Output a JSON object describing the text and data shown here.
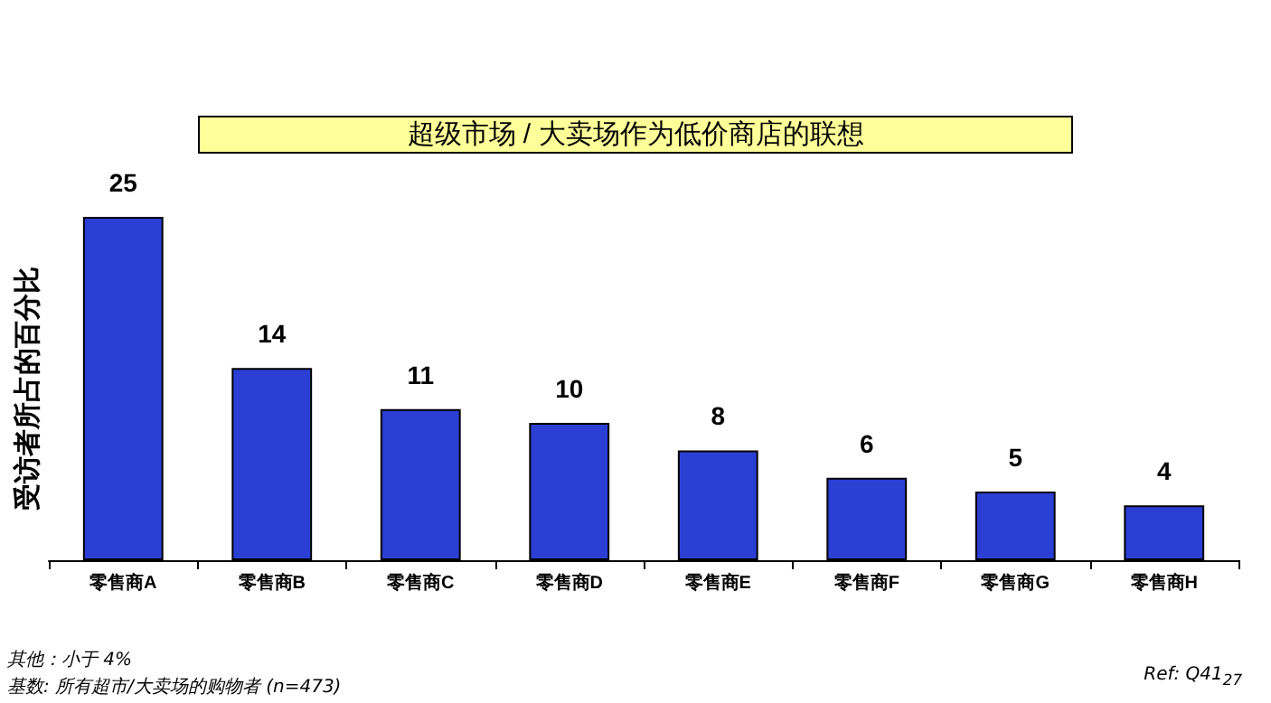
{
  "chart_data": {
    "type": "bar",
    "title": "超级市场 / 大卖场作为低价商店的联想",
    "ylabel": "受访者所占的百分比",
    "categories": [
      "零售商A",
      "零售商B",
      "零售商C",
      "零售商D",
      "零售商E",
      "零售商F",
      "零售商G",
      "零售商H"
    ],
    "values": [
      25,
      14,
      11,
      10,
      8,
      6,
      5,
      4
    ],
    "color": "#2b3fd4",
    "data_labels": true,
    "grid": false,
    "annotations": [
      "其他：小于 4%",
      "基数: 所有超市/大卖场的购物者 (n=473)",
      "Ref: Q41$_{27}$"
    ]
  }
}
